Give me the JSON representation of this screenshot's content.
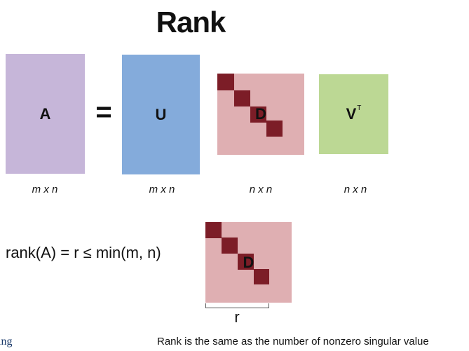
{
  "title": "Rank",
  "matrices": {
    "A": {
      "label": "A",
      "color": "#c6b6d9",
      "dims": "m x n"
    },
    "U": {
      "label": "U",
      "color": "#84abdb",
      "dims": "m x n"
    },
    "D": {
      "label": "D",
      "color": "#dfafb2",
      "diag_color": "#7c1d27",
      "dims": "n x n"
    },
    "V": {
      "label": "V",
      "superscript": "T",
      "color": "#bcd894",
      "dims": "n x n"
    }
  },
  "operator": "=",
  "formula": "rank(A) = r ≤ min(m, n)",
  "lower_matrix": {
    "label": "D",
    "color": "#dfafb2",
    "diag_color": "#7c1d27",
    "bracket_label": "r"
  },
  "caption": "Rank is the same as the number of nonzero singular value",
  "edge_text": "ing"
}
